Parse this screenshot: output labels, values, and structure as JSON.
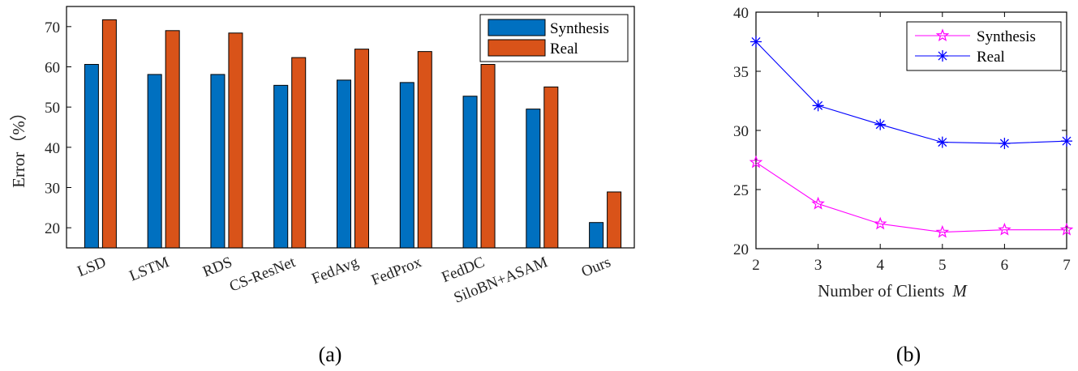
{
  "chart_data": [
    {
      "type": "bar",
      "panel_label": "(a)",
      "title": "",
      "xlabel": "",
      "ylabel": "Error（%）",
      "ylim": [
        15,
        75
      ],
      "yticks": [
        20,
        30,
        40,
        50,
        60,
        70
      ],
      "categories": [
        "LSD",
        "LSTM",
        "RDS",
        "CS-ResNet",
        "FedAvg",
        "FedProx",
        "FedDC",
        "SiloBN+ASAM",
        "Ours"
      ],
      "series": [
        {
          "name": "Synthesis",
          "color": "#0070c0",
          "values": [
            60.6,
            58.1,
            58.1,
            55.4,
            56.7,
            56.1,
            52.7,
            49.5,
            21.3
          ]
        },
        {
          "name": "Real",
          "color": "#d95319",
          "values": [
            71.7,
            69.0,
            68.4,
            62.3,
            64.4,
            63.8,
            60.6,
            55.0,
            28.9
          ]
        }
      ],
      "legend": "top-right"
    },
    {
      "type": "line",
      "panel_label": "(b)",
      "title": "",
      "xlabel": "Number of Clients",
      "xlabel_symbol": "M",
      "ylabel": "",
      "xlim": [
        2,
        7
      ],
      "ylim": [
        20,
        40
      ],
      "xticks": [
        2,
        3,
        4,
        5,
        6,
        7
      ],
      "yticks": [
        20,
        25,
        30,
        35,
        40
      ],
      "x": [
        2,
        3,
        4,
        5,
        6,
        7
      ],
      "series": [
        {
          "name": "Synthesis",
          "color": "#ff00ff",
          "marker": "pentagram",
          "values": [
            27.3,
            23.8,
            22.1,
            21.4,
            21.6,
            21.6
          ]
        },
        {
          "name": "Real",
          "color": "#0000ff",
          "marker": "asterisk",
          "values": [
            37.5,
            32.1,
            30.5,
            29.0,
            28.9,
            29.1
          ]
        }
      ],
      "legend": "top-right"
    }
  ]
}
